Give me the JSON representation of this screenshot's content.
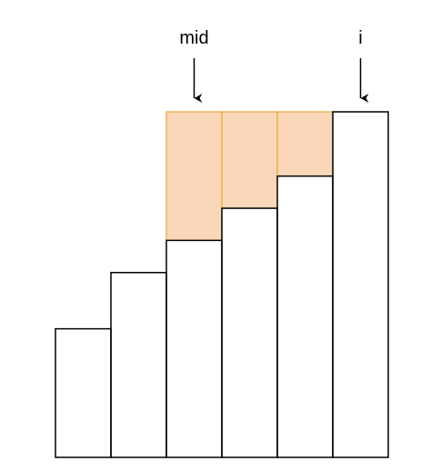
{
  "pointers": [
    {
      "label": "mid",
      "bar_index": 2
    },
    {
      "label": "i",
      "bar_index": 5
    }
  ],
  "bars": [
    {
      "value": 4
    },
    {
      "value": 5.75
    },
    {
      "value": 6.75
    },
    {
      "value": 7.75
    },
    {
      "value": 8.75
    },
    {
      "value": 10.75
    }
  ],
  "fill_to_value": 10.75,
  "filled_bars": [
    2,
    3,
    4
  ],
  "colors": {
    "bar_stroke": "#000000",
    "fill": "#FAD7B8",
    "fill_stroke": "#E6A93A",
    "arrow": "#000000"
  }
}
